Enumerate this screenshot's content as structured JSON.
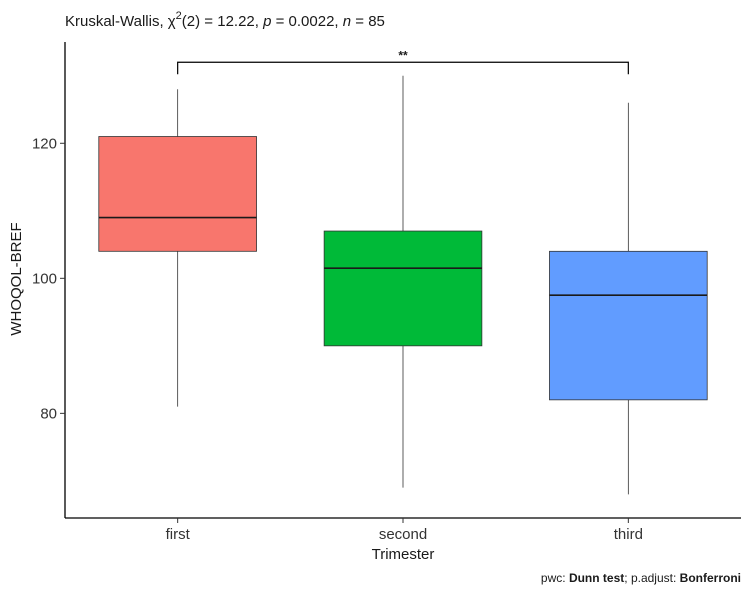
{
  "chart_data": {
    "type": "box",
    "title_parts": {
      "prefix": "Kruskal-Wallis, ",
      "chi": "χ",
      "chi_sup": "2",
      "df_stat": "(2) = 12.22, ",
      "p_label": "p",
      "p_value": " = 0.0022, ",
      "n_label": "n",
      "n_value": " = 85"
    },
    "xlabel": "Trimester",
    "ylabel": "WHOQOL-BREF",
    "categories": [
      "first",
      "second",
      "third"
    ],
    "ylim": [
      64.5,
      135
    ],
    "yticks": [
      80,
      100,
      120
    ],
    "boxes": [
      {
        "category": "first",
        "min": 81,
        "q1": 104,
        "median": 109,
        "q3": 121,
        "max": 128,
        "color": "#F8766D"
      },
      {
        "category": "second",
        "min": 69,
        "q1": 90,
        "median": 101.5,
        "q3": 107,
        "max": 130,
        "color": "#00BA38"
      },
      {
        "category": "third",
        "min": 68,
        "q1": 82,
        "median": 97.5,
        "q3": 104,
        "max": 126,
        "color": "#619CFF"
      }
    ],
    "comparison": {
      "from": "first",
      "to": "third",
      "y": 132,
      "label": "**"
    },
    "caption_parts": {
      "a": "pwc: ",
      "b": "Dunn test",
      "c": "; p.adjust: ",
      "d": "Bonferroni"
    }
  }
}
